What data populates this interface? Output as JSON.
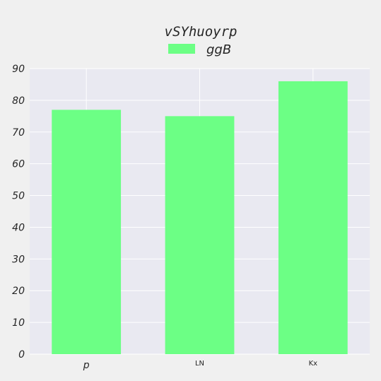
{
  "chart_data": {
    "type": "bar",
    "title": "vSYhuoyrp",
    "categories": [
      "p",
      "LN",
      "Kx"
    ],
    "series": [
      {
        "name": "ggB",
        "values": [
          77,
          75,
          86
        ]
      }
    ],
    "xlabel": "",
    "ylabel": "",
    "ylim": [
      0,
      90
    ],
    "yticks": [
      0,
      10,
      20,
      30,
      40,
      50,
      60,
      70,
      80,
      90
    ],
    "grid": true,
    "legend": "top-center",
    "colors": {
      "bar": "#6cff85",
      "plot_background": "#e9e9f1",
      "figure_background": "#f0f0f0",
      "grid": "#ffffff"
    }
  }
}
